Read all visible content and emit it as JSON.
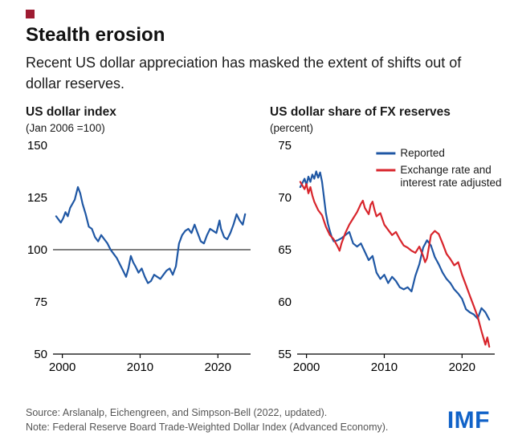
{
  "header": {
    "title": "Stealth erosion",
    "subtitle": "Recent US dollar appreciation has masked the extent of shifts out of dollar reserves."
  },
  "footer": {
    "source": "Source: Arslanalp, Eichengreen, and Simpson-Bell (2022, updated).",
    "note": "Note: Federal Reserve Board Trade-Weighted Dollar Index (Advanced Economy).",
    "logo": "IMF"
  },
  "colors": {
    "blue": "#1f57a4",
    "red": "#d8252c",
    "accent": "#9e1b32",
    "axis": "#000000",
    "logo_blue": "#1062c8"
  },
  "chart_data": [
    {
      "type": "line",
      "title": "US dollar index",
      "subtitle": "(Jan 2006 =100)",
      "xlim": [
        1998.8,
        2024.2
      ],
      "ylim": [
        50,
        150
      ],
      "yticks": [
        50,
        75,
        100,
        125,
        150
      ],
      "xticks": [
        2000,
        2010,
        2020
      ],
      "reference_line": 100,
      "grid": false,
      "series": [
        {
          "name": "US dollar index",
          "color_key": "blue",
          "x": [
            1999.2,
            1999.8,
            2000.1,
            2000.4,
            2000.7,
            2001.0,
            2001.3,
            2001.6,
            2002.0,
            2002.3,
            2002.6,
            2003.0,
            2003.4,
            2003.8,
            2004.2,
            2004.6,
            2005.0,
            2005.4,
            2005.8,
            2006.2,
            2006.6,
            2007.0,
            2007.4,
            2007.8,
            2008.2,
            2008.5,
            2008.8,
            2009.1,
            2009.4,
            2009.8,
            2010.2,
            2010.6,
            2011.0,
            2011.4,
            2011.8,
            2012.2,
            2012.6,
            2013.0,
            2013.4,
            2013.8,
            2014.2,
            2014.6,
            2015.0,
            2015.4,
            2015.8,
            2016.2,
            2016.6,
            2017.0,
            2017.4,
            2017.8,
            2018.2,
            2018.6,
            2019.0,
            2019.4,
            2019.8,
            2020.2,
            2020.4,
            2020.8,
            2021.2,
            2021.6,
            2022.0,
            2022.4,
            2022.8,
            2023.2,
            2023.5
          ],
          "y": [
            116,
            113,
            115,
            118,
            116,
            120,
            122,
            124,
            130,
            127,
            122,
            117,
            111,
            110,
            106,
            104,
            107,
            105,
            103,
            100,
            98,
            96,
            93,
            90,
            87,
            91,
            97,
            94,
            92,
            89,
            91,
            87,
            84,
            85,
            88,
            87,
            86,
            88,
            90,
            91,
            88,
            92,
            103,
            107,
            109,
            110,
            108,
            112,
            108,
            104,
            103,
            107,
            110,
            109,
            108,
            114,
            110,
            106,
            105,
            108,
            112,
            117,
            114,
            112,
            117
          ]
        }
      ]
    },
    {
      "type": "line",
      "title": "US dollar share of FX reserves",
      "subtitle": "(percent)",
      "xlim": [
        1998.8,
        2024.2
      ],
      "ylim": [
        55,
        75
      ],
      "yticks": [
        55,
        60,
        65,
        70,
        75
      ],
      "xticks": [
        2000,
        2010,
        2020
      ],
      "grid": false,
      "legend": [
        {
          "label": "Reported",
          "color_key": "blue"
        },
        {
          "label": "Exchange rate and\ninterest rate adjusted",
          "color_key": "red"
        }
      ],
      "series": [
        {
          "name": "Reported",
          "color_key": "blue",
          "x": [
            1999.2,
            1999.75,
            2000.0,
            2000.25,
            2000.5,
            2000.75,
            2001.0,
            2001.25,
            2001.5,
            2001.75,
            2002.0,
            2002.25,
            2002.5,
            2002.75,
            2003.0,
            2003.25,
            2003.5,
            2004.0,
            2004.5,
            2005.0,
            2005.5,
            2006.0,
            2006.5,
            2007.0,
            2007.5,
            2008.0,
            2008.5,
            2009.0,
            2009.5,
            2010.0,
            2010.5,
            2011.0,
            2011.5,
            2012.0,
            2012.5,
            2013.0,
            2013.5,
            2014.0,
            2014.5,
            2015.0,
            2015.5,
            2016.0,
            2016.5,
            2017.0,
            2017.5,
            2018.0,
            2018.5,
            2019.0,
            2019.5,
            2020.0,
            2020.5,
            2021.0,
            2021.5,
            2022.0,
            2022.5,
            2023.0,
            2023.5
          ],
          "y": [
            71.0,
            71.8,
            71.2,
            72.0,
            71.5,
            72.2,
            71.8,
            72.5,
            71.9,
            72.4,
            71.5,
            70.0,
            68.5,
            67.5,
            66.8,
            66.2,
            65.8,
            65.9,
            66.1,
            66.4,
            66.7,
            65.6,
            65.3,
            65.6,
            64.8,
            64.0,
            64.4,
            62.8,
            62.2,
            62.6,
            61.8,
            62.4,
            62.0,
            61.4,
            61.2,
            61.4,
            61.0,
            62.5,
            63.6,
            65.2,
            65.9,
            65.4,
            64.3,
            63.6,
            62.8,
            62.2,
            61.8,
            61.2,
            60.8,
            60.3,
            59.3,
            59.0,
            58.8,
            58.4,
            59.4,
            59.0,
            58.3
          ]
        },
        {
          "name": "Exchange rate and interest rate adjusted",
          "color_key": "red",
          "x": [
            1999.2,
            1999.75,
            2000.0,
            2000.25,
            2000.5,
            2000.75,
            2001.0,
            2001.5,
            2002.0,
            2002.5,
            2003.0,
            2003.5,
            2004.0,
            2004.25,
            2004.5,
            2005.0,
            2005.5,
            2006.0,
            2006.5,
            2007.0,
            2007.25,
            2007.5,
            2008.0,
            2008.25,
            2008.5,
            2008.75,
            2009.0,
            2009.5,
            2010.0,
            2010.5,
            2011.0,
            2011.5,
            2012.0,
            2012.5,
            2013.0,
            2013.5,
            2014.0,
            2014.5,
            2015.0,
            2015.25,
            2015.5,
            2016.0,
            2016.5,
            2017.0,
            2017.5,
            2018.0,
            2018.5,
            2019.0,
            2019.5,
            2020.0,
            2020.5,
            2021.0,
            2021.5,
            2022.0,
            2022.5,
            2023.0,
            2023.25,
            2023.5
          ],
          "y": [
            71.5,
            70.8,
            71.3,
            70.4,
            71.0,
            70.2,
            69.6,
            68.8,
            68.3,
            67.2,
            66.4,
            66.0,
            65.3,
            64.9,
            65.6,
            66.6,
            67.4,
            68.0,
            68.6,
            69.4,
            69.7,
            69.0,
            68.4,
            69.3,
            69.6,
            68.8,
            68.2,
            68.5,
            67.4,
            66.9,
            66.4,
            66.7,
            66.0,
            65.4,
            65.2,
            64.9,
            64.7,
            65.3,
            64.4,
            63.8,
            64.2,
            66.4,
            66.8,
            66.5,
            65.6,
            64.6,
            64.1,
            63.5,
            63.8,
            62.6,
            61.6,
            60.6,
            59.6,
            58.6,
            57.2,
            55.9,
            56.6,
            55.7
          ]
        }
      ]
    }
  ]
}
